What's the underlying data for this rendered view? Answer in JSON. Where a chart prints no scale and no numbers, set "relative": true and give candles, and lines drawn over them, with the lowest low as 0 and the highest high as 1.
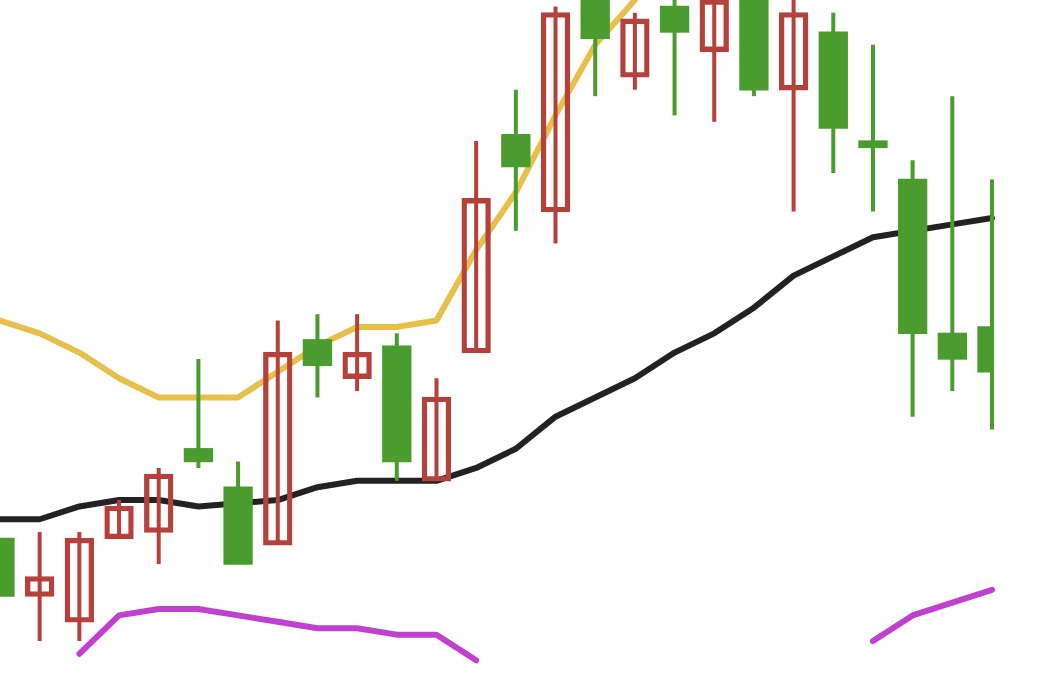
{
  "chart_data": {
    "type": "candlestick",
    "relative": true,
    "categories": [
      null,
      null,
      null,
      null,
      null,
      null,
      null,
      null,
      null,
      null,
      null,
      null,
      null,
      null,
      null,
      null,
      null,
      null,
      null,
      null,
      null,
      null,
      null,
      null,
      null,
      null
    ],
    "ohlc": [
      [
        0.16,
        0.16,
        0.07,
        0.07
      ],
      [
        0.07,
        0.17,
        0,
        0.1
      ],
      [
        0.03,
        0.17,
        0,
        0.16
      ],
      [
        0.16,
        0.22,
        0.16,
        0.21
      ],
      [
        0.17,
        0.27,
        0.12,
        0.26
      ],
      [
        0.3,
        0.44,
        0.27,
        0.28
      ],
      [
        0.24,
        0.28,
        0.12,
        0.12
      ],
      [
        0.15,
        0.5,
        0.15,
        0.45
      ],
      [
        0.47,
        0.51,
        0.38,
        0.43
      ],
      [
        0.41,
        0.51,
        0.39,
        0.45
      ],
      [
        0.46,
        0.48,
        0.25,
        0.28
      ],
      [
        0.25,
        0.41,
        0.25,
        0.38
      ],
      [
        0.45,
        0.78,
        0.45,
        0.69
      ],
      [
        0.79,
        0.86,
        0.64,
        0.74
      ],
      [
        0.67,
        0.99,
        0.62,
        0.98
      ],
      [
        1,
        1,
        0.85,
        0.94
      ],
      [
        0.88,
        0.98,
        0.86,
        0.97
      ],
      [
        0.99,
        1,
        0.82,
        0.95
      ],
      [
        0.92,
        1,
        0.81,
        1
      ],
      [
        1,
        1,
        0.85,
        0.86
      ],
      [
        0.86,
        1,
        0.67,
        0.98
      ],
      [
        0.95,
        0.98,
        0.73,
        0.8
      ],
      [
        0.78,
        0.93,
        0.67,
        0.77
      ],
      [
        0.72,
        0.75,
        0.35,
        0.48
      ],
      [
        0.48,
        0.85,
        0.39,
        0.44
      ],
      [
        0.49,
        0.72,
        0.33,
        0.42
      ]
    ],
    "colors": [
      "#4a9c2f",
      "#b5413c",
      "#b5413c",
      "#b5413c",
      "#b5413c",
      "#4a9c2f",
      "#4a9c2f",
      "#b5413c",
      "#4a9c2f",
      "#b5413c",
      "#4a9c2f",
      "#b5413c",
      "#b5413c",
      "#4a9c2f",
      "#b5413c",
      "#4a9c2f",
      "#b5413c",
      "#4a9c2f",
      "#b5413c",
      "#4a9c2f",
      "#b5413c",
      "#4a9c2f",
      "#4a9c2f",
      "#4a9c2f",
      "#4a9c2f",
      "#4a9c2f"
    ],
    "series": [
      {
        "type": "line",
        "color": "#e6c04a",
        "values": [
          0.5,
          0.48,
          0.45,
          0.41,
          0.38,
          0.38,
          0.38,
          0.42,
          0.46,
          0.49,
          0.49,
          0.5,
          0.61,
          0.7,
          0.82,
          0.93,
          1,
          null,
          null,
          null,
          null,
          null,
          null,
          null,
          null,
          null
        ]
      },
      {
        "type": "line",
        "color": "#222222",
        "values": [
          0.19,
          0.19,
          0.21,
          0.22,
          0.22,
          0.21,
          null,
          0.22,
          0.24,
          0.25,
          0.25,
          0.25,
          0.27,
          0.3,
          0.35,
          0.38,
          0.41,
          0.45,
          0.48,
          0.52,
          0.57,
          0.6,
          0.63,
          null,
          0.65,
          0.66
        ]
      },
      {
        "type": "line",
        "color": "#c040d0",
        "values": [
          null,
          null,
          -0.02,
          0.04,
          0.05,
          0.05,
          0.04,
          0.03,
          0.02,
          0.02,
          0.01,
          0.01,
          -0.03,
          null,
          null,
          null,
          null,
          null,
          null,
          null,
          null,
          null,
          0,
          0.04,
          0.06,
          0.08
        ]
      }
    ],
    "legend": false,
    "marker": "none",
    "line_style": "solid"
  }
}
